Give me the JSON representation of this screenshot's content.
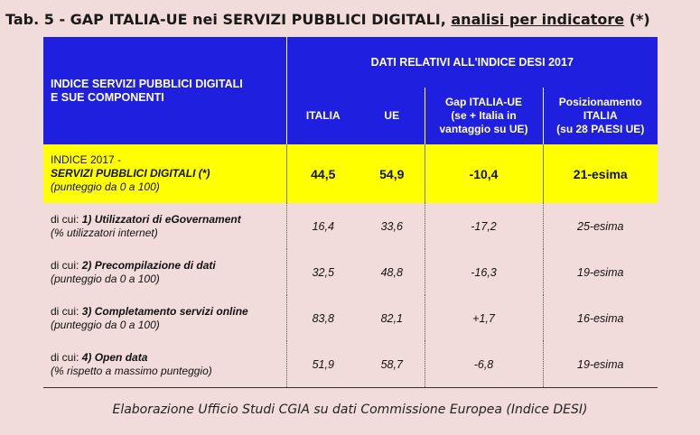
{
  "title": {
    "main": "Tab. 5 - GAP ITALIA-UE nei SERVIZI PUBBLICI DIGITALI, ",
    "underlined": "analisi per indicatore",
    "suffix": " (*)"
  },
  "header": {
    "left_line1": "INDICE SERVIZI PUBBLICI DIGITALI",
    "left_line2": "E SUE COMPONENTI",
    "top": "DATI RELATIVI ALL'INDICE DESI 2017",
    "col_italia": "ITALIA",
    "col_ue": "UE",
    "col_gap_l1": "Gap ITALIA-UE",
    "col_gap_l2": "(se + Italia in",
    "col_gap_l3": "vantaggio su UE)",
    "col_pos_l1": "Posizionamento",
    "col_pos_l2": "ITALIA",
    "col_pos_l3": "(su 28 PAESI UE)"
  },
  "index_row": {
    "l1": "INDICE 2017 -",
    "l2": "SERVIZI PUBBLICI DIGITALI (*)",
    "l3": "(punteggio da 0 a 100)",
    "italia": "44,5",
    "ue": "54,9",
    "gap": "-10,4",
    "pos": "21-esima"
  },
  "rows": [
    {
      "prefix": "di cui: ",
      "name": "1) Utilizzatori di eGovernament",
      "sub": "(% utilizzatori internet)",
      "italia": "16,4",
      "ue": "33,6",
      "gap": "-17,2",
      "pos": "25-esima"
    },
    {
      "prefix": "di cui: ",
      "name": "2) Precompilazione di dati",
      "sub": "(punteggio da 0 a 100)",
      "italia": "32,5",
      "ue": "48,8",
      "gap": "-16,3",
      "pos": "19-esima"
    },
    {
      "prefix": "di cui: ",
      "name": "3) Completamento servizi online",
      "sub": "(punteggio da 0 a 100)",
      "italia": "83,8",
      "ue": "82,1",
      "gap": "+1,7",
      "pos": "16-esima"
    },
    {
      "prefix": "di cui: ",
      "name": "4) Open data",
      "sub": "(% rispetto a massimo punteggio)",
      "italia": "51,9",
      "ue": "58,7",
      "gap": "-6,8",
      "pos": "19-esima"
    }
  ],
  "footer": "Elaborazione Ufficio Studi CGIA su dati Commissione Europea (Indice DESI)",
  "colors": {
    "header_bg": "#1f1fe0",
    "highlight": "#ffff00",
    "page_bg": "#f2dcdb"
  }
}
